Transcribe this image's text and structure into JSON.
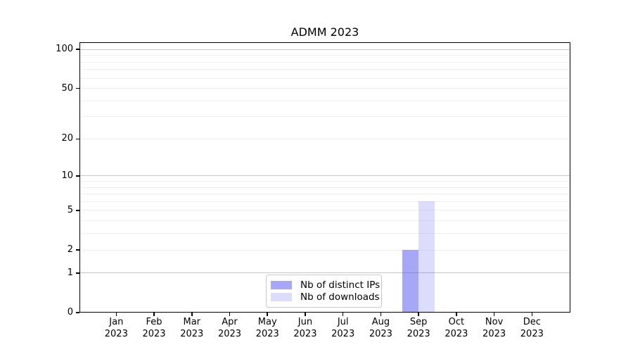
{
  "chart_data": {
    "type": "bar",
    "title": "ADMM 2023",
    "categories": [
      "Jan",
      "Feb",
      "Mar",
      "Apr",
      "May",
      "Jun",
      "Jul",
      "Aug",
      "Sep",
      "Oct",
      "Nov",
      "Dec"
    ],
    "category_year": "2023",
    "series": [
      {
        "name": "Nb of distinct IPs",
        "color": "rgba(80,80,240,0.5)",
        "values": [
          0,
          0,
          0,
          0,
          0,
          0,
          0,
          0,
          2,
          0,
          0,
          0
        ]
      },
      {
        "name": "Nb of downloads",
        "color": "rgba(80,80,240,0.2)",
        "values": [
          0,
          0,
          0,
          0,
          0,
          0,
          0,
          0,
          6,
          0,
          0,
          0
        ]
      }
    ],
    "xlabel": "",
    "ylabel": "",
    "yscale": "log1p",
    "ylim": [
      0,
      113.6
    ],
    "y_ticks": [
      0,
      1,
      2,
      5,
      10,
      20,
      50,
      100
    ],
    "y_major_gridlines": [
      1,
      10,
      100
    ],
    "y_minor_gridlines": [
      2,
      3,
      4,
      5,
      6,
      7,
      8,
      9,
      20,
      30,
      40,
      50,
      60,
      70,
      80,
      90
    ],
    "grid": true,
    "legend_position": "lower center"
  }
}
